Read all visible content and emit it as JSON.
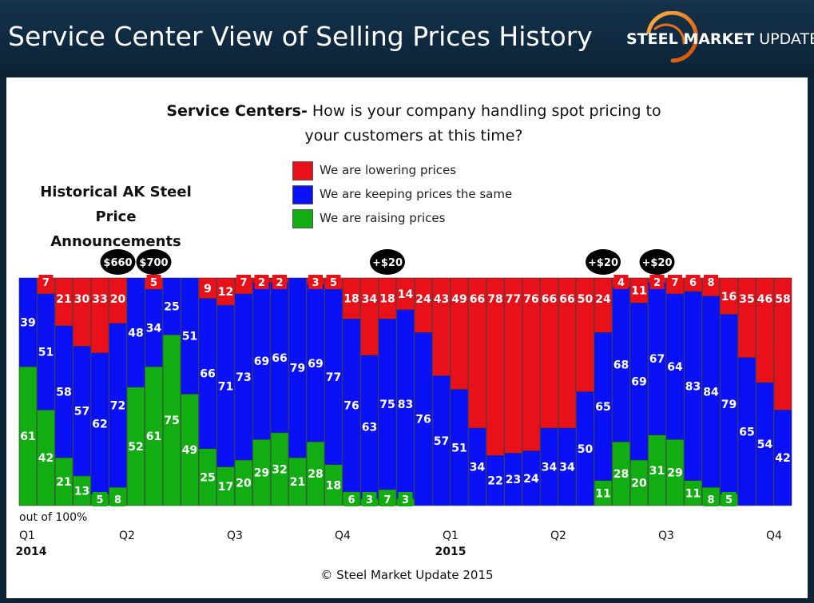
{
  "header": {
    "title": "Service Center View of Selling Prices History",
    "logo_bold": "STEEL MARKET",
    "logo_light": " UPDATE"
  },
  "question": {
    "bold": "Service Centers-",
    "text": " How is your company handling spot pricing to your customers at this time?"
  },
  "historical_title": "Historical AK Steel Price Announcements",
  "copyright": "© Steel Market Update 2015",
  "colors": {
    "lowering": "#e8111a",
    "same": "#0a12f5",
    "raising": "#12ad12",
    "header_bg": "#10293f"
  },
  "legend": [
    {
      "label": "We are lowering prices",
      "color": "#e8111a"
    },
    {
      "label": "We are keeping prices the same",
      "color": "#0a12f5"
    },
    {
      "label": "We are raising prices",
      "color": "#12ad12"
    }
  ],
  "chart_data": {
    "type": "bar",
    "stacked": true,
    "title": "Service Centers- How is your company handling spot pricing to your customers at this time?",
    "ylabel": "out of 100%",
    "ylim": [
      0,
      100
    ],
    "series": [
      {
        "name": "We are raising prices",
        "color": "#12ad12",
        "values": [
          61,
          42,
          21,
          13,
          5,
          8,
          52,
          61,
          75,
          49,
          25,
          17,
          20,
          29,
          32,
          21,
          28,
          18,
          6,
          3,
          7,
          3,
          0,
          0,
          0,
          0,
          0,
          0,
          0,
          0,
          0,
          0,
          11,
          28,
          20,
          31,
          29,
          11,
          8,
          5,
          0,
          0,
          0
        ]
      },
      {
        "name": "We are keeping prices the same",
        "color": "#0a12f5",
        "values": [
          39,
          51,
          58,
          57,
          62,
          72,
          48,
          34,
          25,
          51,
          66,
          71,
          73,
          69,
          66,
          79,
          69,
          77,
          76,
          63,
          75,
          83,
          76,
          57,
          51,
          34,
          22,
          23,
          24,
          34,
          34,
          50,
          65,
          68,
          69,
          67,
          64,
          83,
          84,
          79,
          65,
          54,
          42
        ]
      },
      {
        "name": "We are lowering prices",
        "color": "#e8111a",
        "values": [
          0,
          7,
          21,
          30,
          33,
          20,
          0,
          5,
          0,
          0,
          9,
          12,
          7,
          2,
          2,
          0,
          3,
          5,
          18,
          34,
          18,
          14,
          24,
          43,
          49,
          66,
          78,
          77,
          76,
          66,
          66,
          50,
          24,
          4,
          11,
          2,
          7,
          6,
          8,
          16,
          35,
          46,
          58
        ]
      }
    ],
    "x_ticks": [
      {
        "index": 0,
        "label": "Q1"
      },
      {
        "index": 6,
        "label": "Q2"
      },
      {
        "index": 12,
        "label": "Q3"
      },
      {
        "index": 18,
        "label": "Q4"
      },
      {
        "index": 24,
        "label": "Q1"
      },
      {
        "index": 30,
        "label": "Q2"
      },
      {
        "index": 36,
        "label": "Q3"
      },
      {
        "index": 42,
        "label": "Q4"
      }
    ],
    "year_labels": [
      {
        "index": 0,
        "label": "2014"
      },
      {
        "index": 24,
        "label": "2015"
      }
    ],
    "annotations": [
      {
        "index": 5,
        "label": "$660"
      },
      {
        "index": 7,
        "label": "$700"
      },
      {
        "index": 20,
        "label": "+$20"
      },
      {
        "index": 32,
        "label": "+$20"
      },
      {
        "index": 35,
        "label": "+$20"
      }
    ]
  }
}
